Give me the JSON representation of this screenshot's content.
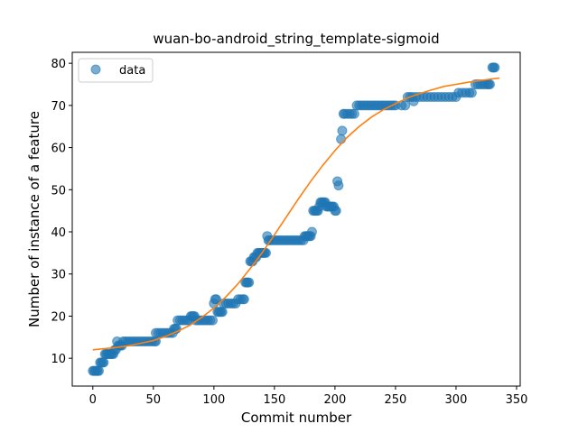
{
  "chart_data": {
    "type": "scatter",
    "title": "wuan-bo-android_string_template-sigmoid",
    "xlabel": "Commit number",
    "ylabel": "Number of instance of a feature",
    "xlim": [
      -17,
      353
    ],
    "ylim": [
      3.4,
      82.6
    ],
    "xticks": [
      0,
      50,
      100,
      150,
      200,
      250,
      300,
      350
    ],
    "yticks": [
      10,
      20,
      30,
      40,
      50,
      60,
      70,
      80
    ],
    "grid": false,
    "legend": {
      "placement": "top-left",
      "entries": [
        "data"
      ]
    },
    "colors": {
      "data": "#1f77b4",
      "fit": "#ff7f0e"
    },
    "series": [
      {
        "name": "data",
        "kind": "scatter",
        "points": [
          [
            0,
            7
          ],
          [
            1,
            7
          ],
          [
            2,
            7
          ],
          [
            3,
            7
          ],
          [
            4,
            7
          ],
          [
            5,
            7
          ],
          [
            6,
            9
          ],
          [
            7,
            9
          ],
          [
            8,
            9
          ],
          [
            9,
            9
          ],
          [
            10,
            11
          ],
          [
            11,
            11
          ],
          [
            12,
            11
          ],
          [
            13,
            11
          ],
          [
            14,
            11
          ],
          [
            15,
            11
          ],
          [
            16,
            11
          ],
          [
            17,
            11
          ],
          [
            18,
            12
          ],
          [
            19,
            12
          ],
          [
            20,
            14
          ],
          [
            21,
            13
          ],
          [
            22,
            13
          ],
          [
            23,
            13
          ],
          [
            24,
            13
          ],
          [
            25,
            14
          ],
          [
            27,
            14
          ],
          [
            29,
            14
          ],
          [
            31,
            14
          ],
          [
            33,
            14
          ],
          [
            35,
            14
          ],
          [
            37,
            14
          ],
          [
            39,
            14
          ],
          [
            41,
            14
          ],
          [
            43,
            14
          ],
          [
            45,
            14
          ],
          [
            47,
            14
          ],
          [
            49,
            14
          ],
          [
            51,
            14
          ],
          [
            52,
            14
          ],
          [
            52,
            16
          ],
          [
            54,
            16
          ],
          [
            56,
            16
          ],
          [
            58,
            16
          ],
          [
            60,
            16
          ],
          [
            62,
            16
          ],
          [
            64,
            16
          ],
          [
            66,
            16
          ],
          [
            67,
            17
          ],
          [
            68,
            17
          ],
          [
            69,
            17
          ],
          [
            70,
            19
          ],
          [
            72,
            19
          ],
          [
            74,
            19
          ],
          [
            76,
            19
          ],
          [
            78,
            19
          ],
          [
            80,
            19
          ],
          [
            81,
            20
          ],
          [
            82,
            20
          ],
          [
            83,
            20
          ],
          [
            84,
            20
          ],
          [
            85,
            19
          ],
          [
            87,
            19
          ],
          [
            89,
            19
          ],
          [
            91,
            19
          ],
          [
            93,
            19
          ],
          [
            95,
            19
          ],
          [
            97,
            19
          ],
          [
            99,
            19
          ],
          [
            100,
            23
          ],
          [
            101,
            24
          ],
          [
            102,
            24
          ],
          [
            103,
            21
          ],
          [
            104,
            21
          ],
          [
            105,
            21
          ],
          [
            106,
            21
          ],
          [
            107,
            21
          ],
          [
            108,
            23
          ],
          [
            110,
            23
          ],
          [
            112,
            23
          ],
          [
            114,
            23
          ],
          [
            116,
            23
          ],
          [
            118,
            23
          ],
          [
            120,
            24
          ],
          [
            122,
            24
          ],
          [
            124,
            24
          ],
          [
            125,
            24
          ],
          [
            126,
            28
          ],
          [
            127,
            28
          ],
          [
            128,
            28
          ],
          [
            129,
            28
          ],
          [
            130,
            33
          ],
          [
            131,
            33
          ],
          [
            132,
            33
          ],
          [
            133,
            34
          ],
          [
            134,
            34
          ],
          [
            135,
            34
          ],
          [
            136,
            35
          ],
          [
            137,
            35
          ],
          [
            138,
            35
          ],
          [
            139,
            35
          ],
          [
            140,
            35
          ],
          [
            141,
            35
          ],
          [
            142,
            35
          ],
          [
            143,
            35
          ],
          [
            144,
            39
          ],
          [
            145,
            38
          ],
          [
            146,
            38
          ],
          [
            148,
            38
          ],
          [
            150,
            38
          ],
          [
            152,
            38
          ],
          [
            154,
            38
          ],
          [
            156,
            38
          ],
          [
            158,
            38
          ],
          [
            160,
            38
          ],
          [
            162,
            38
          ],
          [
            164,
            38
          ],
          [
            166,
            38
          ],
          [
            168,
            38
          ],
          [
            170,
            38
          ],
          [
            172,
            38
          ],
          [
            174,
            38
          ],
          [
            175,
            39
          ],
          [
            176,
            39
          ],
          [
            177,
            39
          ],
          [
            178,
            39
          ],
          [
            179,
            39
          ],
          [
            180,
            39
          ],
          [
            181,
            40
          ],
          [
            182,
            45
          ],
          [
            183,
            45
          ],
          [
            184,
            45
          ],
          [
            185,
            45
          ],
          [
            186,
            45
          ],
          [
            187,
            46
          ],
          [
            188,
            47
          ],
          [
            189,
            47
          ],
          [
            190,
            47
          ],
          [
            191,
            47
          ],
          [
            192,
            47
          ],
          [
            193,
            46
          ],
          [
            194,
            46
          ],
          [
            195,
            46
          ],
          [
            196,
            46
          ],
          [
            197,
            46
          ],
          [
            198,
            46
          ],
          [
            199,
            46
          ],
          [
            200,
            45
          ],
          [
            201,
            45
          ],
          [
            202,
            52
          ],
          [
            203,
            51
          ],
          [
            205,
            62
          ],
          [
            206,
            64
          ],
          [
            207,
            68
          ],
          [
            208,
            68
          ],
          [
            210,
            68
          ],
          [
            212,
            68
          ],
          [
            214,
            68
          ],
          [
            216,
            68
          ],
          [
            218,
            70
          ],
          [
            220,
            70
          ],
          [
            222,
            70
          ],
          [
            224,
            70
          ],
          [
            226,
            70
          ],
          [
            228,
            70
          ],
          [
            230,
            70
          ],
          [
            232,
            70
          ],
          [
            234,
            70
          ],
          [
            236,
            70
          ],
          [
            238,
            70
          ],
          [
            240,
            70
          ],
          [
            242,
            70
          ],
          [
            244,
            70
          ],
          [
            246,
            70
          ],
          [
            248,
            70
          ],
          [
            250,
            70
          ],
          [
            255,
            70
          ],
          [
            258,
            70
          ],
          [
            260,
            72
          ],
          [
            262,
            72
          ],
          [
            264,
            72
          ],
          [
            265,
            71
          ],
          [
            267,
            72
          ],
          [
            270,
            72
          ],
          [
            273,
            72
          ],
          [
            276,
            72
          ],
          [
            279,
            72
          ],
          [
            282,
            72
          ],
          [
            285,
            72
          ],
          [
            288,
            72
          ],
          [
            291,
            72
          ],
          [
            294,
            72
          ],
          [
            297,
            72
          ],
          [
            300,
            72
          ],
          [
            302,
            73
          ],
          [
            305,
            73
          ],
          [
            308,
            73
          ],
          [
            311,
            73
          ],
          [
            313,
            73
          ],
          [
            316,
            75
          ],
          [
            318,
            75
          ],
          [
            320,
            75
          ],
          [
            322,
            75
          ],
          [
            324,
            75
          ],
          [
            326,
            75
          ],
          [
            327,
            75
          ],
          [
            328,
            75
          ],
          [
            330,
            79
          ],
          [
            331,
            79
          ],
          [
            332,
            79
          ]
        ]
      },
      {
        "name": "",
        "kind": "line",
        "x": [
          0,
          10,
          20,
          30,
          40,
          50,
          60,
          70,
          80,
          90,
          100,
          110,
          120,
          130,
          140,
          150,
          160,
          170,
          180,
          190,
          200,
          210,
          220,
          230,
          240,
          250,
          260,
          270,
          280,
          290,
          300,
          310,
          320,
          330,
          336
        ],
        "y": [
          12.0,
          12.3,
          12.6,
          13.0,
          13.6,
          14.2,
          15.2,
          16.4,
          17.8,
          19.7,
          21.9,
          24.6,
          27.7,
          31.3,
          35.1,
          39.3,
          43.6,
          47.9,
          52.0,
          55.8,
          59.3,
          62.4,
          65.0,
          67.2,
          69.0,
          70.4,
          71.8,
          72.8,
          73.7,
          74.5,
          75.0,
          75.5,
          75.9,
          76.3,
          76.5
        ]
      }
    ]
  }
}
